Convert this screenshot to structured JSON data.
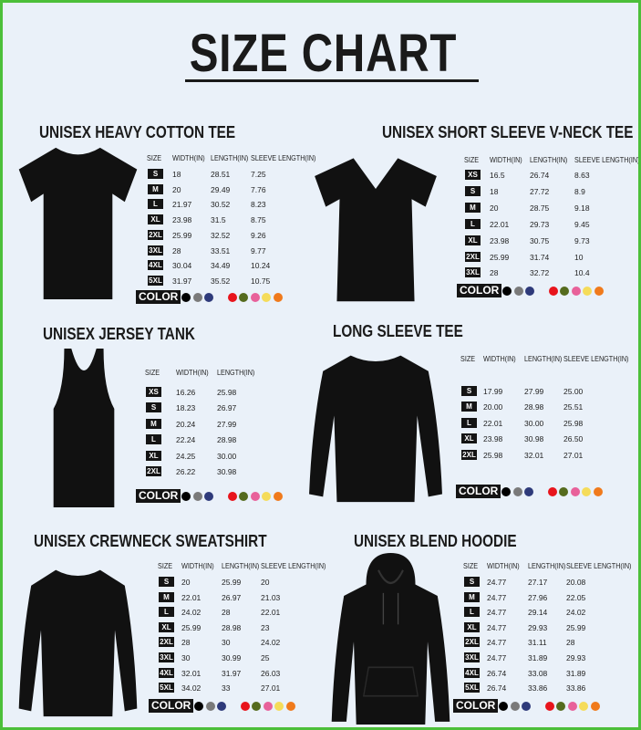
{
  "title": "SIZE CHART",
  "color_label": "COLOR",
  "swatches": [
    "#000000",
    "#7a7a7a",
    "#2e3a7a",
    "#e8141c",
    "#556b1e",
    "#e8619a",
    "#f5dc5a",
    "#f07a1c"
  ],
  "sections": [
    {
      "title": "UNISEX HEAVY COTTON TEE",
      "icon": "tshirt-icon",
      "headers": [
        "SIZE",
        "WIDTH(IN)",
        "LENGTH(IN)",
        "SLEEVE LENGTH(IN)"
      ],
      "rows": [
        [
          "S",
          "18",
          "28.51",
          "7.25"
        ],
        [
          "M",
          "20",
          "29.49",
          "7.76"
        ],
        [
          "L",
          "21.97",
          "30.52",
          "8.23"
        ],
        [
          "XL",
          "23.98",
          "31.5",
          "8.75"
        ],
        [
          "2XL",
          "25.99",
          "32.52",
          "9.26"
        ],
        [
          "3XL",
          "28",
          "33.51",
          "9.77"
        ],
        [
          "4XL",
          "30.04",
          "34.49",
          "10.24"
        ],
        [
          "5XL",
          "31.97",
          "35.52",
          "10.75"
        ]
      ]
    },
    {
      "title": "UNISEX SHORT SLEEVE V-NECK TEE",
      "icon": "vneck-tshirt-icon",
      "headers": [
        "SIZE",
        "WIDTH(IN)",
        "LENGTH(IN)",
        "SLEEVE LENGTH(IN)"
      ],
      "rows": [
        [
          "XS",
          "16.5",
          "26.74",
          "8.63"
        ],
        [
          "S",
          "18",
          "27.72",
          "8.9"
        ],
        [
          "M",
          "20",
          "28.75",
          "9.18"
        ],
        [
          "L",
          "22.01",
          "29.73",
          "9.45"
        ],
        [
          "XL",
          "23.98",
          "30.75",
          "9.73"
        ],
        [
          "2XL",
          "25.99",
          "31.74",
          "10"
        ],
        [
          "3XL",
          "28",
          "32.72",
          "10.4"
        ]
      ]
    },
    {
      "title": "UNISEX JERSEY TANK",
      "icon": "tank-top-icon",
      "headers": [
        "SIZE",
        "WIDTH(IN)",
        "LENGTH(IN)"
      ],
      "rows": [
        [
          "XS",
          "16.26",
          "25.98"
        ],
        [
          "S",
          "18.23",
          "26.97"
        ],
        [
          "M",
          "20.24",
          "27.99"
        ],
        [
          "L",
          "22.24",
          "28.98"
        ],
        [
          "XL",
          "24.25",
          "30.00"
        ],
        [
          "2XL",
          "26.22",
          "30.98"
        ]
      ]
    },
    {
      "title": "LONG SLEEVE TEE",
      "icon": "long-sleeve-tee-icon",
      "headers": [
        "SIZE",
        "WIDTH(IN)",
        "LENGTH(IN)",
        "SLEEVE LENGTH(IN)"
      ],
      "rows": [
        [
          "S",
          "17.99",
          "27.99",
          "25.00"
        ],
        [
          "M",
          "20.00",
          "28.98",
          "25.51"
        ],
        [
          "L",
          "22.01",
          "30.00",
          "25.98"
        ],
        [
          "XL",
          "23.98",
          "30.98",
          "26.50"
        ],
        [
          "2XL",
          "25.98",
          "32.01",
          "27.01"
        ]
      ]
    },
    {
      "title": "UNISEX CREWNECK SWEATSHIRT",
      "icon": "sweatshirt-icon",
      "headers": [
        "SIZE",
        "WIDTH(IN)",
        "LENGTH(IN)",
        "SLEEVE LENGTH(IN)"
      ],
      "rows": [
        [
          "S",
          "20",
          "25.99",
          "20"
        ],
        [
          "M",
          "22.01",
          "26.97",
          "21.03"
        ],
        [
          "L",
          "24.02",
          "28",
          "22.01"
        ],
        [
          "XL",
          "25.99",
          "28.98",
          "23"
        ],
        [
          "2XL",
          "28",
          "30",
          "24.02"
        ],
        [
          "3XL",
          "30",
          "30.99",
          "25"
        ],
        [
          "4XL",
          "32.01",
          "31.97",
          "26.03"
        ],
        [
          "5XL",
          "34.02",
          "33",
          "27.01"
        ]
      ]
    },
    {
      "title": "UNISEX BLEND HOODIE",
      "icon": "hoodie-icon",
      "headers": [
        "SIZE",
        "WIDTH(IN)",
        "LENGTH(IN)",
        "SLEEVE LENGTH(IN)"
      ],
      "rows": [
        [
          "S",
          "24.77",
          "27.17",
          "20.08"
        ],
        [
          "M",
          "24.77",
          "27.96",
          "22.05"
        ],
        [
          "L",
          "24.77",
          "29.14",
          "24.02"
        ],
        [
          "XL",
          "24.77",
          "29.93",
          "25.99"
        ],
        [
          "2XL",
          "24.77",
          "31.11",
          "28"
        ],
        [
          "3XL",
          "24.77",
          "31.89",
          "29.93"
        ],
        [
          "4XL",
          "26.74",
          "33.08",
          "31.89"
        ],
        [
          "5XL",
          "26.74",
          "33.86",
          "33.86"
        ]
      ]
    }
  ]
}
